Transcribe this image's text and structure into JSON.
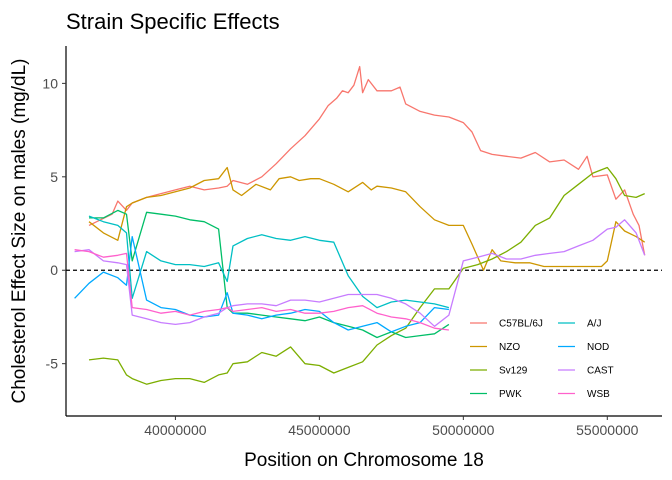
{
  "chart_data": {
    "type": "line",
    "title": "Strain Specific Effects",
    "xlabel": "Position on Chromosome 18",
    "ylabel": "Cholesterol Effect Size on males (mg/dL)",
    "xlim": [
      36200000,
      56900000
    ],
    "ylim": [
      -7.8,
      12.0
    ],
    "x_ticks": [
      40000000,
      45000000,
      50000000,
      55000000
    ],
    "x_tick_labels": [
      "40000000",
      "45000000",
      "50000000",
      "55000000"
    ],
    "y_ticks": [
      -5,
      0,
      5,
      10
    ],
    "y_tick_labels": [
      "-5",
      "0",
      "5",
      "10"
    ],
    "reference_line": {
      "y": 0,
      "style": "dashed"
    },
    "grid": false,
    "legend_position": "bottom-right",
    "legend": [
      "C57BL/6J",
      "A/J",
      "NZO",
      "NOD",
      "Sv129",
      "CAST",
      "PWK",
      "WSB"
    ],
    "series": [
      {
        "name": "C57BL/6J",
        "color": "#F8766D",
        "x": [
          37000000,
          37800000,
          38000000,
          38300000,
          38500000,
          39000000,
          39500000,
          40000000,
          40500000,
          41000000,
          41500000,
          41800000,
          42000000,
          42500000,
          43000000,
          43500000,
          44000000,
          44500000,
          45000000,
          45300000,
          45600000,
          45800000,
          46000000,
          46200000,
          46400000,
          46500000,
          46700000,
          47000000,
          47500000,
          47800000,
          48000000,
          48500000,
          49000000,
          49500000,
          50000000,
          50300000,
          50600000,
          51000000,
          51500000,
          52000000,
          52500000,
          53000000,
          53500000,
          54000000,
          54300000,
          54500000,
          55000000,
          55300000,
          55600000,
          55900000,
          56100000,
          56200000,
          56300000
        ],
        "y": [
          2.4,
          3.0,
          3.7,
          3.2,
          3.6,
          3.9,
          4.1,
          4.3,
          4.5,
          4.3,
          4.4,
          4.5,
          4.8,
          4.6,
          5.0,
          5.7,
          6.5,
          7.2,
          8.1,
          8.8,
          9.2,
          9.6,
          9.5,
          9.9,
          10.9,
          9.5,
          10.2,
          9.6,
          9.6,
          9.8,
          8.9,
          8.5,
          8.3,
          8.2,
          7.9,
          7.4,
          6.4,
          6.2,
          6.1,
          6.0,
          6.3,
          5.8,
          5.9,
          5.4,
          6.1,
          5.0,
          5.1,
          3.8,
          4.3,
          3.0,
          2.4,
          1.6,
          0.8
        ]
      },
      {
        "name": "NZO",
        "color": "#CD9600",
        "x": [
          37000000,
          37500000,
          38000000,
          38300000,
          38500000,
          39000000,
          39500000,
          40000000,
          40500000,
          41000000,
          41500000,
          41800000,
          42000000,
          42300000,
          42800000,
          43300000,
          43600000,
          44000000,
          44300000,
          44700000,
          45000000,
          45500000,
          46000000,
          46500000,
          46800000,
          47000000,
          47500000,
          48000000,
          48500000,
          49000000,
          49500000,
          50000000,
          50300000,
          50700000,
          51000000,
          51300000,
          51800000,
          52300000,
          52800000,
          53300000,
          53800000,
          54300000,
          54800000,
          55000000,
          55300000,
          55600000,
          56000000,
          56300000
        ],
        "y": [
          2.6,
          2.0,
          1.6,
          3.4,
          3.6,
          3.9,
          4.0,
          4.2,
          4.4,
          4.8,
          4.9,
          5.5,
          4.3,
          4.0,
          4.6,
          4.3,
          4.9,
          5.0,
          4.8,
          4.9,
          4.9,
          4.6,
          4.2,
          4.7,
          4.3,
          4.5,
          4.4,
          4.2,
          3.4,
          2.7,
          2.4,
          2.4,
          1.4,
          0.0,
          1.1,
          0.5,
          0.4,
          0.4,
          0.2,
          0.2,
          0.2,
          0.2,
          0.2,
          0.5,
          2.6,
          2.1,
          1.8,
          1.5
        ]
      },
      {
        "name": "Sv129",
        "color": "#7CAE00",
        "x": [
          37000000,
          37500000,
          38000000,
          38300000,
          38500000,
          39000000,
          39500000,
          40000000,
          40500000,
          41000000,
          41500000,
          41800000,
          42000000,
          42500000,
          43000000,
          43500000,
          44000000,
          44500000,
          45000000,
          45500000,
          46000000,
          46500000,
          47000000,
          47500000,
          48000000,
          48500000,
          49000000,
          49500000,
          50000000,
          50500000,
          51000000,
          51500000,
          52000000,
          52500000,
          53000000,
          53500000,
          54000000,
          54500000,
          55000000,
          55300000,
          55600000,
          56000000,
          56300000
        ],
        "y": [
          -4.8,
          -4.7,
          -4.8,
          -5.6,
          -5.8,
          -6.1,
          -5.9,
          -5.8,
          -5.8,
          -6.0,
          -5.6,
          -5.5,
          -5.0,
          -4.9,
          -4.4,
          -4.6,
          -4.1,
          -5.0,
          -5.1,
          -5.5,
          -5.2,
          -4.9,
          -4.0,
          -3.5,
          -3.1,
          -2.0,
          -1.0,
          -1.0,
          0.1,
          0.3,
          0.6,
          1.0,
          1.5,
          2.4,
          2.8,
          4.0,
          4.6,
          5.2,
          5.5,
          4.9,
          4.0,
          3.9,
          4.1
        ]
      },
      {
        "name": "PWK",
        "color": "#00BE67",
        "x": [
          37000000,
          37500000,
          38000000,
          38300000,
          38500000,
          39000000,
          39500000,
          40000000,
          40500000,
          41000000,
          41500000,
          41800000,
          42000000,
          42500000,
          43000000,
          43500000,
          44000000,
          44500000,
          45000000,
          45500000,
          46000000,
          46500000,
          47000000,
          47500000,
          48000000,
          48500000,
          49000000,
          49500000
        ],
        "y": [
          2.8,
          2.8,
          3.2,
          3.0,
          0.5,
          3.1,
          3.0,
          2.9,
          2.7,
          2.6,
          2.2,
          -2.0,
          -2.3,
          -2.3,
          -2.4,
          -2.5,
          -2.6,
          -2.7,
          -2.5,
          -2.8,
          -3.0,
          -3.2,
          -3.6,
          -3.3,
          -3.6,
          -3.5,
          -3.4,
          -2.9
        ]
      },
      {
        "name": "A/J",
        "color": "#00BFC4",
        "x": [
          37000000,
          37500000,
          38000000,
          38300000,
          38500000,
          39000000,
          39500000,
          40000000,
          40500000,
          41000000,
          41500000,
          41800000,
          42000000,
          42500000,
          43000000,
          43500000,
          44000000,
          44500000,
          45000000,
          45500000,
          46000000,
          46500000,
          47000000,
          47500000,
          48000000,
          48500000,
          49000000,
          49500000
        ],
        "y": [
          2.9,
          2.6,
          2.4,
          2.0,
          -1.5,
          1.0,
          0.5,
          0.3,
          0.3,
          0.2,
          0.4,
          -0.6,
          1.3,
          1.7,
          1.9,
          1.7,
          1.6,
          1.8,
          1.6,
          1.5,
          -0.3,
          -1.4,
          -2.0,
          -1.7,
          -1.6,
          -1.7,
          -1.8,
          -2.0
        ]
      },
      {
        "name": "NOD",
        "color": "#00A9FF",
        "x": [
          36500000,
          37000000,
          37500000,
          38000000,
          38300000,
          38500000,
          39000000,
          39500000,
          40000000,
          40500000,
          41000000,
          41500000,
          41800000,
          42000000,
          42500000,
          43000000,
          43500000,
          44000000,
          44500000,
          45000000,
          45500000,
          46000000,
          46500000,
          47000000,
          47500000,
          48000000,
          48500000,
          49000000,
          49500000
        ],
        "y": [
          -1.5,
          -0.7,
          -0.1,
          -0.4,
          -0.8,
          1.8,
          -1.6,
          -2.0,
          -2.1,
          -2.4,
          -2.5,
          -2.4,
          -1.2,
          -2.3,
          -2.4,
          -2.6,
          -2.4,
          -2.3,
          -2.1,
          -2.2,
          -2.8,
          -3.2,
          -3.0,
          -2.8,
          -3.3,
          -3.0,
          -2.8,
          -2.0,
          -2.1
        ]
      },
      {
        "name": "CAST",
        "color": "#C77CFF",
        "x": [
          36500000,
          37000000,
          37500000,
          38000000,
          38300000,
          38500000,
          39000000,
          39500000,
          40000000,
          40500000,
          41000000,
          41500000,
          41800000,
          42000000,
          42500000,
          43000000,
          43500000,
          44000000,
          44500000,
          45000000,
          45500000,
          46000000,
          46500000,
          47000000,
          47500000,
          48000000,
          48500000,
          49000000,
          49500000,
          50000000,
          50500000,
          51000000,
          51500000,
          52000000,
          52500000,
          53000000,
          53500000,
          54000000,
          54500000,
          55000000,
          55300000,
          55600000,
          56000000,
          56300000
        ],
        "y": [
          1.0,
          1.1,
          0.5,
          0.4,
          0.3,
          -2.4,
          -2.6,
          -2.8,
          -2.9,
          -2.8,
          -2.5,
          -2.3,
          -2.0,
          -1.9,
          -1.8,
          -1.8,
          -1.9,
          -1.6,
          -1.6,
          -1.7,
          -1.5,
          -1.3,
          -1.3,
          -1.3,
          -1.5,
          -1.8,
          -2.3,
          -3.0,
          -2.4,
          0.5,
          0.7,
          0.9,
          0.6,
          0.6,
          0.8,
          0.9,
          1.0,
          1.3,
          1.6,
          2.2,
          2.3,
          2.7,
          2.0,
          0.8
        ]
      },
      {
        "name": "WSB",
        "color": "#FF61CC",
        "x": [
          36500000,
          37000000,
          37500000,
          38000000,
          38300000,
          38500000,
          39000000,
          39500000,
          40000000,
          40500000,
          41000000,
          41500000,
          41800000,
          42000000,
          42500000,
          43000000,
          43500000,
          44000000,
          44500000,
          45000000,
          45500000,
          46000000,
          46500000,
          47000000,
          47500000,
          48000000,
          48500000,
          49000000,
          49500000
        ],
        "y": [
          1.1,
          1.0,
          0.7,
          0.8,
          0.9,
          -2.0,
          -2.1,
          -2.3,
          -2.2,
          -2.4,
          -2.2,
          -2.1,
          -2.0,
          -2.2,
          -2.1,
          -2.0,
          -2.2,
          -2.1,
          -2.3,
          -2.3,
          -2.2,
          -2.0,
          -1.9,
          -2.3,
          -2.5,
          -2.6,
          -2.8,
          -3.1,
          -3.2
        ]
      }
    ]
  }
}
